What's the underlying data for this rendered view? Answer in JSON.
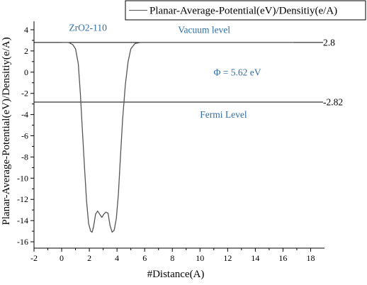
{
  "chart_data": {
    "type": "line",
    "xlabel": "#Distance(A)",
    "ylabel": "Planar-Average-Potential(eV)/Densitiy(e/A)",
    "xlim": [
      -2,
      19
    ],
    "ylim": [
      -16.6,
      4.8
    ],
    "x_ticks": [
      -2,
      0,
      2,
      4,
      6,
      8,
      10,
      12,
      14,
      16,
      18
    ],
    "y_ticks": [
      4,
      2,
      0,
      -2,
      -4,
      -6,
      -8,
      -10,
      -12,
      -14,
      -16
    ],
    "legend": {
      "position": "top-right",
      "entries": [
        "Planar-Average-Potential(eV)/Densitiy(e/A)"
      ]
    },
    "series": [
      {
        "name": "Planar-Average-Potential(eV)/Densitiy(e/A)",
        "color": "#555555",
        "x": [
          0,
          0.5,
          0.8,
          1.0,
          1.2,
          1.35,
          1.5,
          1.65,
          1.8,
          1.95,
          2.1,
          2.2,
          2.3,
          2.45,
          2.6,
          2.75,
          2.9,
          3.05,
          3.2,
          3.35,
          3.5,
          3.65,
          3.8,
          3.95,
          4.1,
          4.25,
          4.4,
          4.6,
          4.8,
          5.0,
          5.3,
          5.7,
          6.0,
          7,
          10,
          14,
          16.8
        ],
        "y": [
          2.8,
          2.8,
          2.6,
          2.2,
          0.8,
          -2.0,
          -5.5,
          -9.0,
          -12.2,
          -14.3,
          -15.0,
          -15.1,
          -14.6,
          -13.4,
          -13.1,
          -13.4,
          -13.7,
          -13.4,
          -13.2,
          -13.3,
          -14.5,
          -15.1,
          -14.9,
          -13.8,
          -11.5,
          -8.0,
          -4.5,
          -1.2,
          1.0,
          2.2,
          2.7,
          2.8,
          2.8,
          2.8,
          2.8,
          2.8,
          2.8
        ]
      }
    ],
    "reference_lines": [
      {
        "y": 2.8,
        "label": "2.8"
      },
      {
        "y": -2.82,
        "label": "-2.82"
      }
    ],
    "annotations": [
      {
        "text": "ZrO2-110",
        "x": 1.9,
        "y": 3.9
      },
      {
        "text": "Vacuum level",
        "x": 10.3,
        "y": 3.7
      },
      {
        "text": "Φ = 5.62  eV",
        "x": 12.7,
        "y": -0.3
      },
      {
        "text": "Fermi Level",
        "x": 11.7,
        "y": -4.3
      }
    ],
    "grid": false
  }
}
